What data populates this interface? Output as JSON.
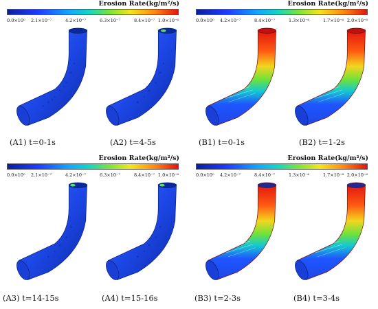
{
  "figure": {
    "panels": [
      {
        "colorbar": {
          "title": "Erosion Rate(kg/m²/s)",
          "ticks": [
            "0.0×10⁰",
            "2.1×10⁻⁷",
            "4.2×10⁻⁷",
            "6.3×10⁻⁷",
            "8.4×10⁻⁷",
            "1.0×10⁻⁶"
          ]
        },
        "captions": [
          "(A1) t=0-1s",
          "(A2) t=4-5s"
        ]
      },
      {
        "colorbar": {
          "title": "Erosion Rate(kg/m²/s)",
          "ticks": [
            "0.0×10⁰",
            "4.2×10⁻⁷",
            "8.4×10⁻⁷",
            "1.3×10⁻⁶",
            "1.7×10⁻⁶",
            "2.0×10⁻⁶"
          ]
        },
        "captions": [
          "(B1) t=0-1s",
          "(B2) t=1-2s"
        ]
      },
      {
        "colorbar": {
          "title": "Erosion Rate(kg/m²/s)",
          "ticks": [
            "0.0×10⁰",
            "2.1×10⁻⁷",
            "4.2×10⁻⁷",
            "6.3×10⁻⁷",
            "8.4×10⁻⁷",
            "1.0×10⁻⁶"
          ]
        },
        "captions": [
          "(A3) t=14-15s",
          "(A4) t=15-16s"
        ]
      },
      {
        "colorbar": {
          "title": "Erosion Rate(kg/m²/s)",
          "ticks": [
            "0.0×10⁰",
            "4.2×10⁻⁷",
            "8.4×10⁻⁷",
            "1.3×10⁻⁶",
            "1.7×10⁻⁶",
            "2.0×10⁻⁶"
          ]
        },
        "captions": [
          "(B3) t=2-3s",
          "(B4) t=3-4s"
        ]
      }
    ]
  }
}
